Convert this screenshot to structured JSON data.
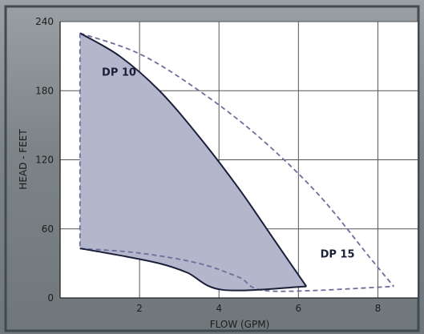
{
  "chart_data": {
    "type": "area",
    "xlabel": "FLOW (GPM)",
    "ylabel": "HEAD - FEET",
    "xlim": [
      0,
      9
    ],
    "ylim": [
      0,
      240
    ],
    "x_ticks": [
      2,
      4,
      6,
      8
    ],
    "y_ticks": [
      0,
      60,
      120,
      180,
      240
    ],
    "x_tick_labels": [
      "2",
      "4",
      "6",
      "8"
    ],
    "y_tick_labels": [
      "0",
      "60",
      "120",
      "180",
      "240"
    ],
    "grid": true,
    "colors": {
      "background": "#ffffff",
      "grid": "#555555",
      "dp10_fill": "#b4b6cc",
      "dp10_line": "#1a1f3a",
      "dp15_line": "#6e6e9a",
      "frame": "#404a52"
    },
    "series": [
      {
        "name": "DP 10",
        "style": "filled-solid",
        "upper": [
          [
            0.5,
            230
          ],
          [
            1.5,
            210
          ],
          [
            2.5,
            180
          ],
          [
            3.5,
            140
          ],
          [
            4.5,
            95
          ],
          [
            5.3,
            55
          ],
          [
            6.2,
            10
          ]
        ],
        "lower": [
          [
            0.5,
            43
          ],
          [
            1.5,
            37
          ],
          [
            2.5,
            30
          ],
          [
            3.2,
            22
          ],
          [
            4.1,
            7
          ],
          [
            6.2,
            10
          ]
        ]
      },
      {
        "name": "DP 15",
        "style": "dashed",
        "upper": [
          [
            0.5,
            230
          ],
          [
            2.0,
            212
          ],
          [
            3.5,
            180
          ],
          [
            5.0,
            140
          ],
          [
            6.5,
            90
          ],
          [
            7.8,
            35
          ],
          [
            8.4,
            10
          ]
        ],
        "lower": [
          [
            0.5,
            43
          ],
          [
            2.0,
            39
          ],
          [
            3.5,
            30
          ],
          [
            4.5,
            18
          ],
          [
            5.3,
            6
          ],
          [
            8.4,
            10
          ]
        ]
      }
    ],
    "labels": [
      {
        "text": "DP 10",
        "x": 1.05,
        "y": 193
      },
      {
        "text": "DP 15",
        "x": 6.55,
        "y": 35
      }
    ]
  }
}
